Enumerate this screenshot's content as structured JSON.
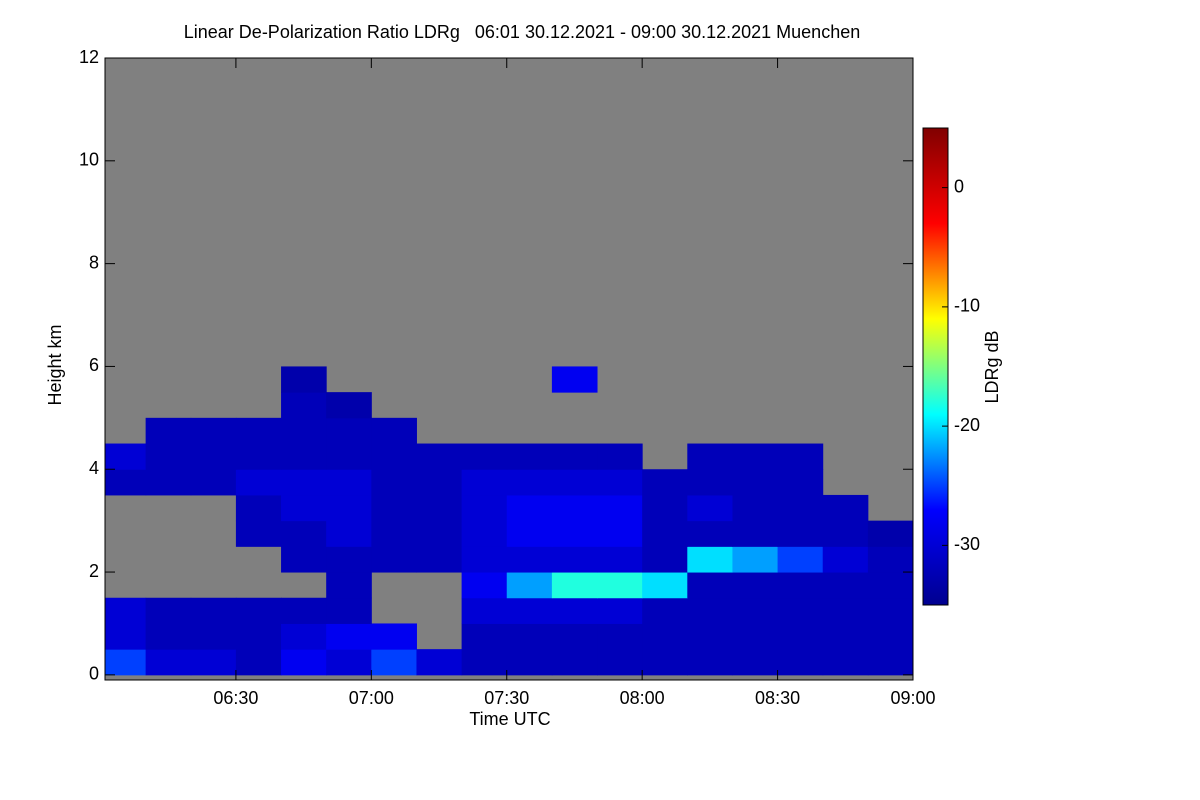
{
  "chart_data": {
    "type": "heatmap",
    "title": "Linear De-Polarization Ratio LDRg   06:01 30.12.2021 - 09:00 30.12.2021 Muenchen",
    "x_label": "Time UTC",
    "y_label": "Height km",
    "colorbar_label": "LDRg dB",
    "background": "#808080",
    "colormap": [
      "#00008f",
      "#0000ff",
      "#00ffff",
      "#ffff00",
      "#ff0000",
      "#800000"
    ],
    "xlim": [
      "06:01",
      "09:00"
    ],
    "xticks": [
      "06:30",
      "07:00",
      "07:30",
      "08:00",
      "08:30",
      "09:00"
    ],
    "ylim": [
      -0.1,
      12
    ],
    "yticks": [
      0,
      2,
      4,
      6,
      8,
      10,
      12
    ],
    "clim": [
      -35,
      5
    ],
    "cticks": [
      0,
      -10,
      -20,
      -30
    ],
    "x": [
      "06:01",
      "06:10",
      "06:20",
      "06:30",
      "06:40",
      "06:50",
      "07:00",
      "07:10",
      "07:20",
      "07:30",
      "07:40",
      "07:50",
      "08:00",
      "08:10",
      "08:20",
      "08:30",
      "08:40",
      "08:50",
      "09:00"
    ],
    "y": [
      0,
      0.5,
      1,
      1.5,
      2,
      2.5,
      3,
      3.5,
      4,
      4.5,
      5,
      5.5,
      6
    ],
    "z": [
      [
        -25,
        -30,
        -30,
        -32,
        -28,
        -30,
        -25,
        -30,
        -32,
        -32,
        -32,
        -32,
        -32,
        -32,
        -32,
        -32,
        -32,
        -32
      ],
      [
        -30,
        -32,
        -32,
        -32,
        -30,
        -28,
        -28,
        null,
        -32,
        -32,
        -32,
        -32,
        -32,
        -32,
        -32,
        -32,
        -32,
        -32
      ],
      [
        -30,
        -32,
        -32,
        -32,
        -32,
        -32,
        null,
        null,
        -30,
        -30,
        -30,
        -30,
        -32,
        -32,
        -32,
        -32,
        -32,
        -32
      ],
      [
        null,
        null,
        null,
        null,
        null,
        -32,
        null,
        null,
        -28,
        -22,
        -18,
        -18,
        -20,
        -32,
        -32,
        -32,
        -32,
        -32
      ],
      [
        null,
        null,
        null,
        null,
        -32,
        -32,
        -32,
        -32,
        -30,
        -30,
        -30,
        -30,
        -32,
        -20,
        -22,
        -25,
        -30,
        -32
      ],
      [
        null,
        null,
        null,
        -32,
        -32,
        -30,
        -32,
        -32,
        -30,
        -28,
        -28,
        -28,
        -32,
        -32,
        -32,
        -32,
        -32,
        -33
      ],
      [
        null,
        null,
        null,
        -32,
        -30,
        -30,
        -32,
        -32,
        -30,
        -28,
        -28,
        -28,
        -32,
        -30,
        -32,
        -32,
        -32,
        null
      ],
      [
        -32,
        -32,
        -32,
        -30,
        -30,
        -30,
        -32,
        -32,
        -30,
        -30,
        -30,
        -30,
        -32,
        -32,
        -32,
        -32,
        null,
        null
      ],
      [
        -30,
        -32,
        -32,
        -32,
        -32,
        -32,
        -32,
        -32,
        -32,
        -32,
        -32,
        -32,
        null,
        -32,
        -32,
        -32,
        null,
        null
      ],
      [
        null,
        -32,
        -32,
        -32,
        -32,
        -32,
        -32,
        null,
        null,
        null,
        null,
        null,
        null,
        null,
        null,
        null,
        null,
        null
      ],
      [
        null,
        null,
        null,
        null,
        -32,
        -33,
        null,
        null,
        null,
        null,
        null,
        null,
        null,
        null,
        null,
        null,
        null,
        null
      ],
      [
        null,
        null,
        null,
        null,
        -33,
        null,
        null,
        null,
        null,
        null,
        -28,
        null,
        null,
        null,
        null,
        null,
        null,
        null
      ]
    ]
  }
}
